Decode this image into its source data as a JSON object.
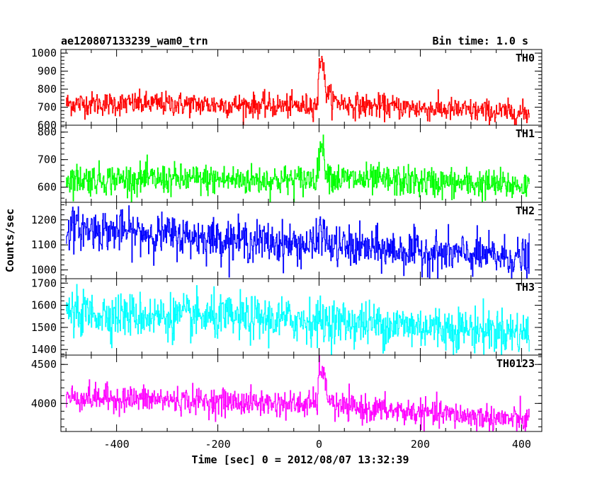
{
  "header": {
    "title": "ae120807133239_wam0_trn",
    "bin_time": "Bin time: 1.0 s"
  },
  "chart_data": {
    "type": "line",
    "xlabel": "Time [sec] 0 = 2012/08/07 13:32:39",
    "ylabel": "Counts/sec",
    "xlim": [
      -510,
      440
    ],
    "x_ticks": [
      -400,
      -200,
      0,
      200,
      400
    ],
    "x_data_range": [
      -500,
      415
    ],
    "bin_time_s": 1.0,
    "panels": [
      {
        "name": "TH0",
        "color": "#ff0000",
        "ylim": [
          600,
          1020
        ],
        "yticks": [
          600,
          700,
          800,
          900,
          1000
        ],
        "profile": [
          [
            -500,
            720
          ],
          [
            -300,
            718
          ],
          [
            -30,
            705
          ],
          [
            -3,
            720
          ],
          [
            0,
            960
          ],
          [
            6,
            980
          ],
          [
            12,
            800
          ],
          [
            25,
            740
          ],
          [
            60,
            712
          ],
          [
            415,
            665
          ]
        ],
        "noise_sd": 33
      },
      {
        "name": "TH1",
        "color": "#00ff00",
        "ylim": [
          545,
          825
        ],
        "yticks": [
          600,
          700,
          800
        ],
        "profile": [
          [
            -500,
            630
          ],
          [
            -300,
            628
          ],
          [
            -30,
            625
          ],
          [
            -3,
            640
          ],
          [
            1,
            760
          ],
          [
            7,
            740
          ],
          [
            14,
            660
          ],
          [
            30,
            630
          ],
          [
            415,
            605
          ]
        ],
        "noise_sd": 28
      },
      {
        "name": "TH2",
        "color": "#0000ff",
        "ylim": [
          965,
          1270
        ],
        "yticks": [
          1000,
          1100,
          1200
        ],
        "profile": [
          [
            -500,
            1170
          ],
          [
            -300,
            1140
          ],
          [
            -100,
            1110
          ],
          [
            -5,
            1095
          ],
          [
            0,
            1170
          ],
          [
            6,
            1150
          ],
          [
            20,
            1095
          ],
          [
            415,
            1045
          ]
        ],
        "noise_sd": 40
      },
      {
        "name": "TH3",
        "color": "#00ffff",
        "ylim": [
          1375,
          1720
        ],
        "yticks": [
          1400,
          1500,
          1600,
          1700
        ],
        "profile": [
          [
            -500,
            1565
          ],
          [
            -300,
            1550
          ],
          [
            0,
            1530
          ],
          [
            200,
            1505
          ],
          [
            415,
            1475
          ]
        ],
        "noise_sd": 50
      },
      {
        "name": "TH0123",
        "color": "#ff00ff",
        "ylim": [
          3640,
          4620
        ],
        "yticks": [
          4000,
          4500
        ],
        "profile": [
          [
            -500,
            4080
          ],
          [
            -300,
            4045
          ],
          [
            -30,
            3985
          ],
          [
            -3,
            4010
          ],
          [
            0,
            4500
          ],
          [
            6,
            4420
          ],
          [
            14,
            4150
          ],
          [
            30,
            3960
          ],
          [
            415,
            3780
          ]
        ],
        "noise_sd": 85
      }
    ]
  }
}
